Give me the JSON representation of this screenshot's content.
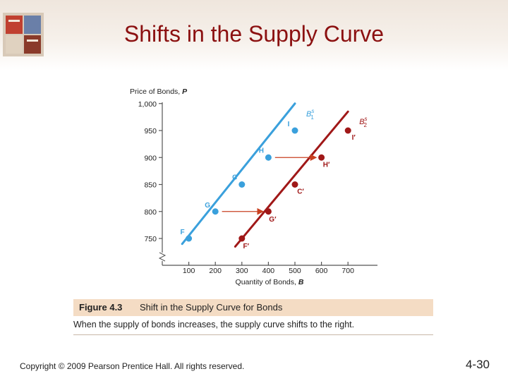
{
  "slide": {
    "title": "Shifts in the Supply Curve",
    "copyright": "Copyright © 2009 Pearson Prentice Hall. All rights reserved.",
    "page_number": "4-30"
  },
  "figure": {
    "number": "Figure 4.3",
    "title": "Shift in the Supply Curve for Bonds",
    "caption": "When the supply of bonds increases, the supply curve shifts to the right."
  },
  "colors": {
    "title": "#8b1010",
    "curve_1": "#3aa0dc",
    "curve_2": "#a01818",
    "axis": "#555555",
    "arrow": "#c84020",
    "figure_bar": "#f4dcc4"
  },
  "chart_data": {
    "type": "line",
    "xlabel": "Quantity of Bonds, B",
    "ylabel": "Price of Bonds, P",
    "xlim": [
      0,
      750
    ],
    "ylim": [
      715,
      1000
    ],
    "x_ticks": [
      100,
      200,
      300,
      400,
      500,
      600,
      700
    ],
    "y_ticks": [
      750,
      800,
      850,
      900,
      950,
      1000
    ],
    "y_tick_labels": [
      "750",
      "800",
      "850",
      "900",
      "950",
      "1,000"
    ],
    "grid": false,
    "axis_break": true,
    "series": [
      {
        "name": "B1s",
        "label_base": "B",
        "label_sup": "s",
        "label_sub": "1",
        "color": "#3aa0dc",
        "line": [
          [
            75,
            740
          ],
          [
            500,
            1000
          ]
        ],
        "points": [
          {
            "label": "F",
            "x": 100,
            "y": 750
          },
          {
            "label": "G",
            "x": 200,
            "y": 800
          },
          {
            "label": "C",
            "x": 300,
            "y": 850
          },
          {
            "label": "H",
            "x": 400,
            "y": 900
          },
          {
            "label": "I",
            "x": 500,
            "y": 950
          }
        ]
      },
      {
        "name": "B2s",
        "label_base": "B",
        "label_sup": "s",
        "label_sub": "2",
        "color": "#a01818",
        "line": [
          [
            275,
            735
          ],
          [
            700,
            985
          ]
        ],
        "points": [
          {
            "label": "F′",
            "x": 300,
            "y": 750
          },
          {
            "label": "G′",
            "x": 400,
            "y": 800
          },
          {
            "label": "C′",
            "x": 500,
            "y": 850
          },
          {
            "label": "H′",
            "x": 600,
            "y": 900
          },
          {
            "label": "I′",
            "x": 700,
            "y": 950
          }
        ]
      }
    ],
    "arrows": [
      {
        "from": [
          225,
          800
        ],
        "to": [
          380,
          800
        ]
      },
      {
        "from": [
          425,
          900
        ],
        "to": [
          580,
          900
        ]
      }
    ]
  }
}
